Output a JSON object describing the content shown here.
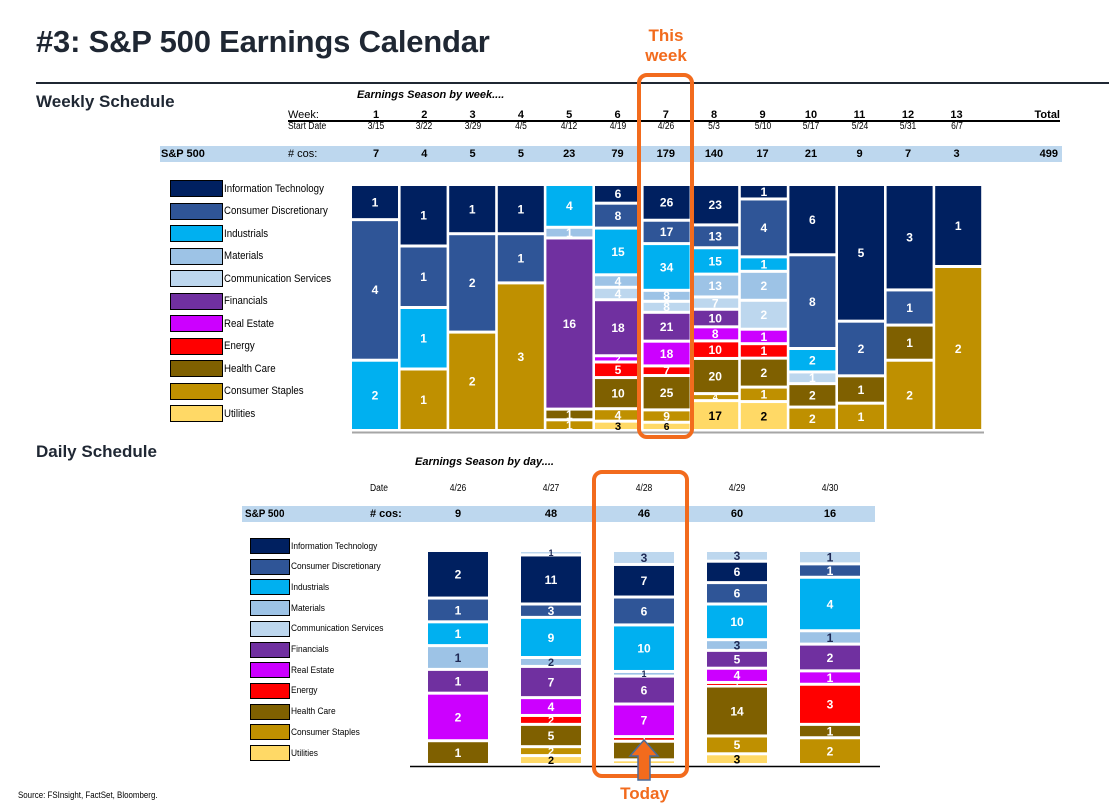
{
  "title": "#3: S&P 500 Earnings Calendar",
  "annotations": {
    "this_week": "This week",
    "today": "Today"
  },
  "weekly": {
    "section_title": "Weekly Schedule",
    "subtitle": "Earnings Season by week....",
    "week_label": "Week:",
    "start_label": "Start Date",
    "total_label": "Total",
    "index_label": "S&P 500",
    "count_label": "# cos:",
    "total_value": "499"
  },
  "daily": {
    "section_title": "Daily Schedule",
    "subtitle": "Earnings Season by day....",
    "date_label": "Date",
    "index_label": "S&P 500",
    "count_label": "# cos:"
  },
  "source": "Source: FSInsight, FactSet, Bloomberg.",
  "colors": {
    "Information Technology": "#002060",
    "Consumer Discretionary": "#2f5597",
    "Industrials": "#00b0f0",
    "Materials": "#9dc3e6",
    "Communication Services": "#bdd7ee",
    "Financials": "#7030a0",
    "Real Estate": "#cc00ff",
    "Energy": "#ff0000",
    "Health Care": "#7f6000",
    "Consumer Staples": "#bf9000",
    "Utilities": "#ffd966",
    "highlight": "#f26b1d",
    "band": "#bdd7ee"
  },
  "chart_data": [
    {
      "type": "bar",
      "stacking": "percent",
      "title": "Earnings Season by week....",
      "xlabel": "Week",
      "categories": [
        "1",
        "2",
        "3",
        "4",
        "5",
        "6",
        "7",
        "8",
        "9",
        "10",
        "11",
        "12",
        "13"
      ],
      "start_dates": [
        "3/15",
        "3/22",
        "3/29",
        "4/5",
        "4/12",
        "4/19",
        "4/26",
        "5/3",
        "5/10",
        "5/17",
        "5/24",
        "5/31",
        "6/7"
      ],
      "totals": [
        7,
        4,
        5,
        5,
        23,
        79,
        179,
        140,
        17,
        21,
        9,
        7,
        3
      ],
      "highlight_category": "7",
      "legend_position": "left",
      "series": [
        {
          "name": "Information Technology",
          "values": [
            1,
            1,
            1,
            1,
            0,
            6,
            26,
            23,
            1,
            6,
            5,
            3,
            1
          ]
        },
        {
          "name": "Consumer Discretionary",
          "values": [
            4,
            1,
            2,
            1,
            0,
            8,
            17,
            13,
            4,
            8,
            2,
            1,
            0
          ]
        },
        {
          "name": "Industrials",
          "values": [
            2,
            1,
            0,
            0,
            4,
            15,
            34,
            15,
            1,
            2,
            0,
            0,
            0
          ]
        },
        {
          "name": "Materials",
          "values": [
            0,
            0,
            0,
            0,
            1,
            4,
            8,
            13,
            2,
            0,
            0,
            0,
            0
          ]
        },
        {
          "name": "Communication Services",
          "values": [
            0,
            0,
            0,
            0,
            0,
            4,
            8,
            7,
            2,
            1,
            0,
            0,
            0
          ]
        },
        {
          "name": "Financials",
          "values": [
            0,
            0,
            0,
            0,
            16,
            18,
            21,
            10,
            0,
            0,
            0,
            0,
            0
          ]
        },
        {
          "name": "Real Estate",
          "values": [
            0,
            0,
            0,
            0,
            0,
            2,
            18,
            8,
            1,
            0,
            0,
            0,
            0
          ]
        },
        {
          "name": "Energy",
          "values": [
            0,
            0,
            0,
            0,
            0,
            5,
            7,
            10,
            1,
            0,
            0,
            0,
            0
          ]
        },
        {
          "name": "Health Care",
          "values": [
            0,
            0,
            0,
            0,
            1,
            10,
            25,
            20,
            2,
            2,
            1,
            1,
            0
          ]
        },
        {
          "name": "Consumer Staples",
          "values": [
            0,
            1,
            2,
            3,
            1,
            4,
            9,
            4,
            1,
            2,
            1,
            2,
            2
          ]
        },
        {
          "name": "Utilities",
          "values": [
            0,
            0,
            0,
            0,
            0,
            3,
            6,
            17,
            2,
            0,
            0,
            0,
            0
          ]
        }
      ]
    },
    {
      "type": "bar",
      "stacking": "percent",
      "title": "Earnings Season by day....",
      "xlabel": "Date",
      "categories": [
        "4/26",
        "4/27",
        "4/28",
        "4/29",
        "4/30"
      ],
      "totals": [
        9,
        48,
        46,
        60,
        16
      ],
      "highlight_category": "4/28",
      "legend_position": "left",
      "stack_order": [
        "Communication Services",
        "Information Technology",
        "Consumer Discretionary",
        "Industrials",
        "Materials",
        "Financials",
        "Real Estate",
        "Energy",
        "Health Care",
        "Consumer Staples",
        "Utilities"
      ],
      "series": [
        {
          "name": "Information Technology",
          "values": [
            2,
            11,
            7,
            6,
            0
          ]
        },
        {
          "name": "Consumer Discretionary",
          "values": [
            1,
            3,
            6,
            6,
            1
          ]
        },
        {
          "name": "Industrials",
          "values": [
            1,
            9,
            10,
            10,
            4
          ]
        },
        {
          "name": "Materials",
          "values": [
            1,
            2,
            1,
            3,
            1
          ]
        },
        {
          "name": "Communication Services",
          "values": [
            0,
            1,
            3,
            3,
            1
          ]
        },
        {
          "name": "Financials",
          "values": [
            1,
            7,
            6,
            5,
            2
          ]
        },
        {
          "name": "Real Estate",
          "values": [
            2,
            4,
            7,
            4,
            1
          ]
        },
        {
          "name": "Energy",
          "values": [
            0,
            2,
            1,
            1,
            3
          ]
        },
        {
          "name": "Health Care",
          "values": [
            1,
            5,
            4,
            14,
            1
          ]
        },
        {
          "name": "Consumer Staples",
          "values": [
            0,
            2,
            0,
            5,
            2
          ]
        },
        {
          "name": "Utilities",
          "values": [
            0,
            2,
            1,
            3,
            0
          ]
        }
      ]
    }
  ]
}
